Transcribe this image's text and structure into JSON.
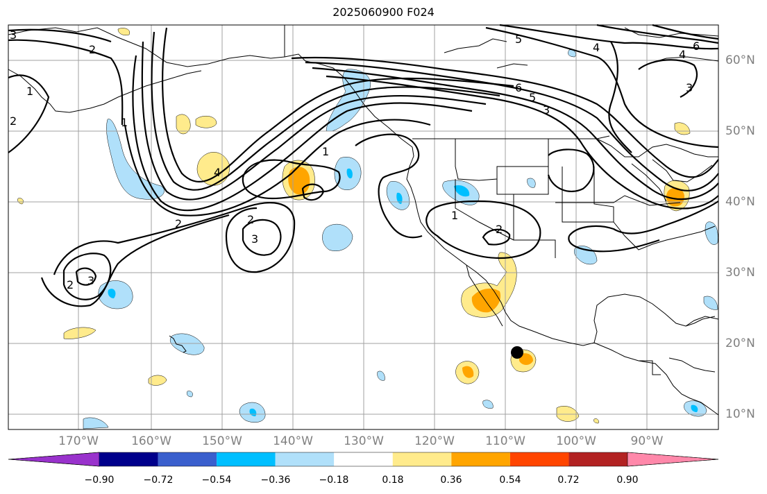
{
  "title": "2025060900 F024",
  "lon_labels": [
    "170°W",
    "160°W",
    "150°W",
    "140°W",
    "130°W",
    "120°W",
    "110°W",
    "100°W",
    "90°W"
  ],
  "lat_labels": [
    "60°N",
    "50°N",
    "40°N",
    "30°N",
    "20°N",
    "10°N"
  ],
  "colorbar": {
    "ticks": [
      "−0.90",
      "−0.72",
      "−0.54",
      "−0.36",
      "−0.18",
      "0.18",
      "0.36",
      "0.54",
      "0.72",
      "0.90"
    ],
    "colors": [
      "#9932cc",
      "#00008b",
      "#3a5fcd",
      "#00bfff",
      "#b0e0fa",
      "#ffffff",
      "#ffeb8c",
      "#ffa500",
      "#ff4500",
      "#b22222",
      "#ff88aa"
    ]
  },
  "contour_labels": [
    "3",
    "2",
    "1",
    "2",
    "1",
    "4",
    "2",
    "3",
    "2",
    "2",
    "3",
    "1",
    "2",
    "1",
    "5",
    "4",
    "4",
    "6",
    "6",
    "5",
    "3",
    "3"
  ],
  "colors": {
    "land_outline": "#000000",
    "grid": "#a0a0a0",
    "contour": "#000000",
    "blue_light": "#b0e0fa",
    "blue": "#00bfff",
    "yellow": "#ffeb8c",
    "orange": "#ffa500"
  }
}
